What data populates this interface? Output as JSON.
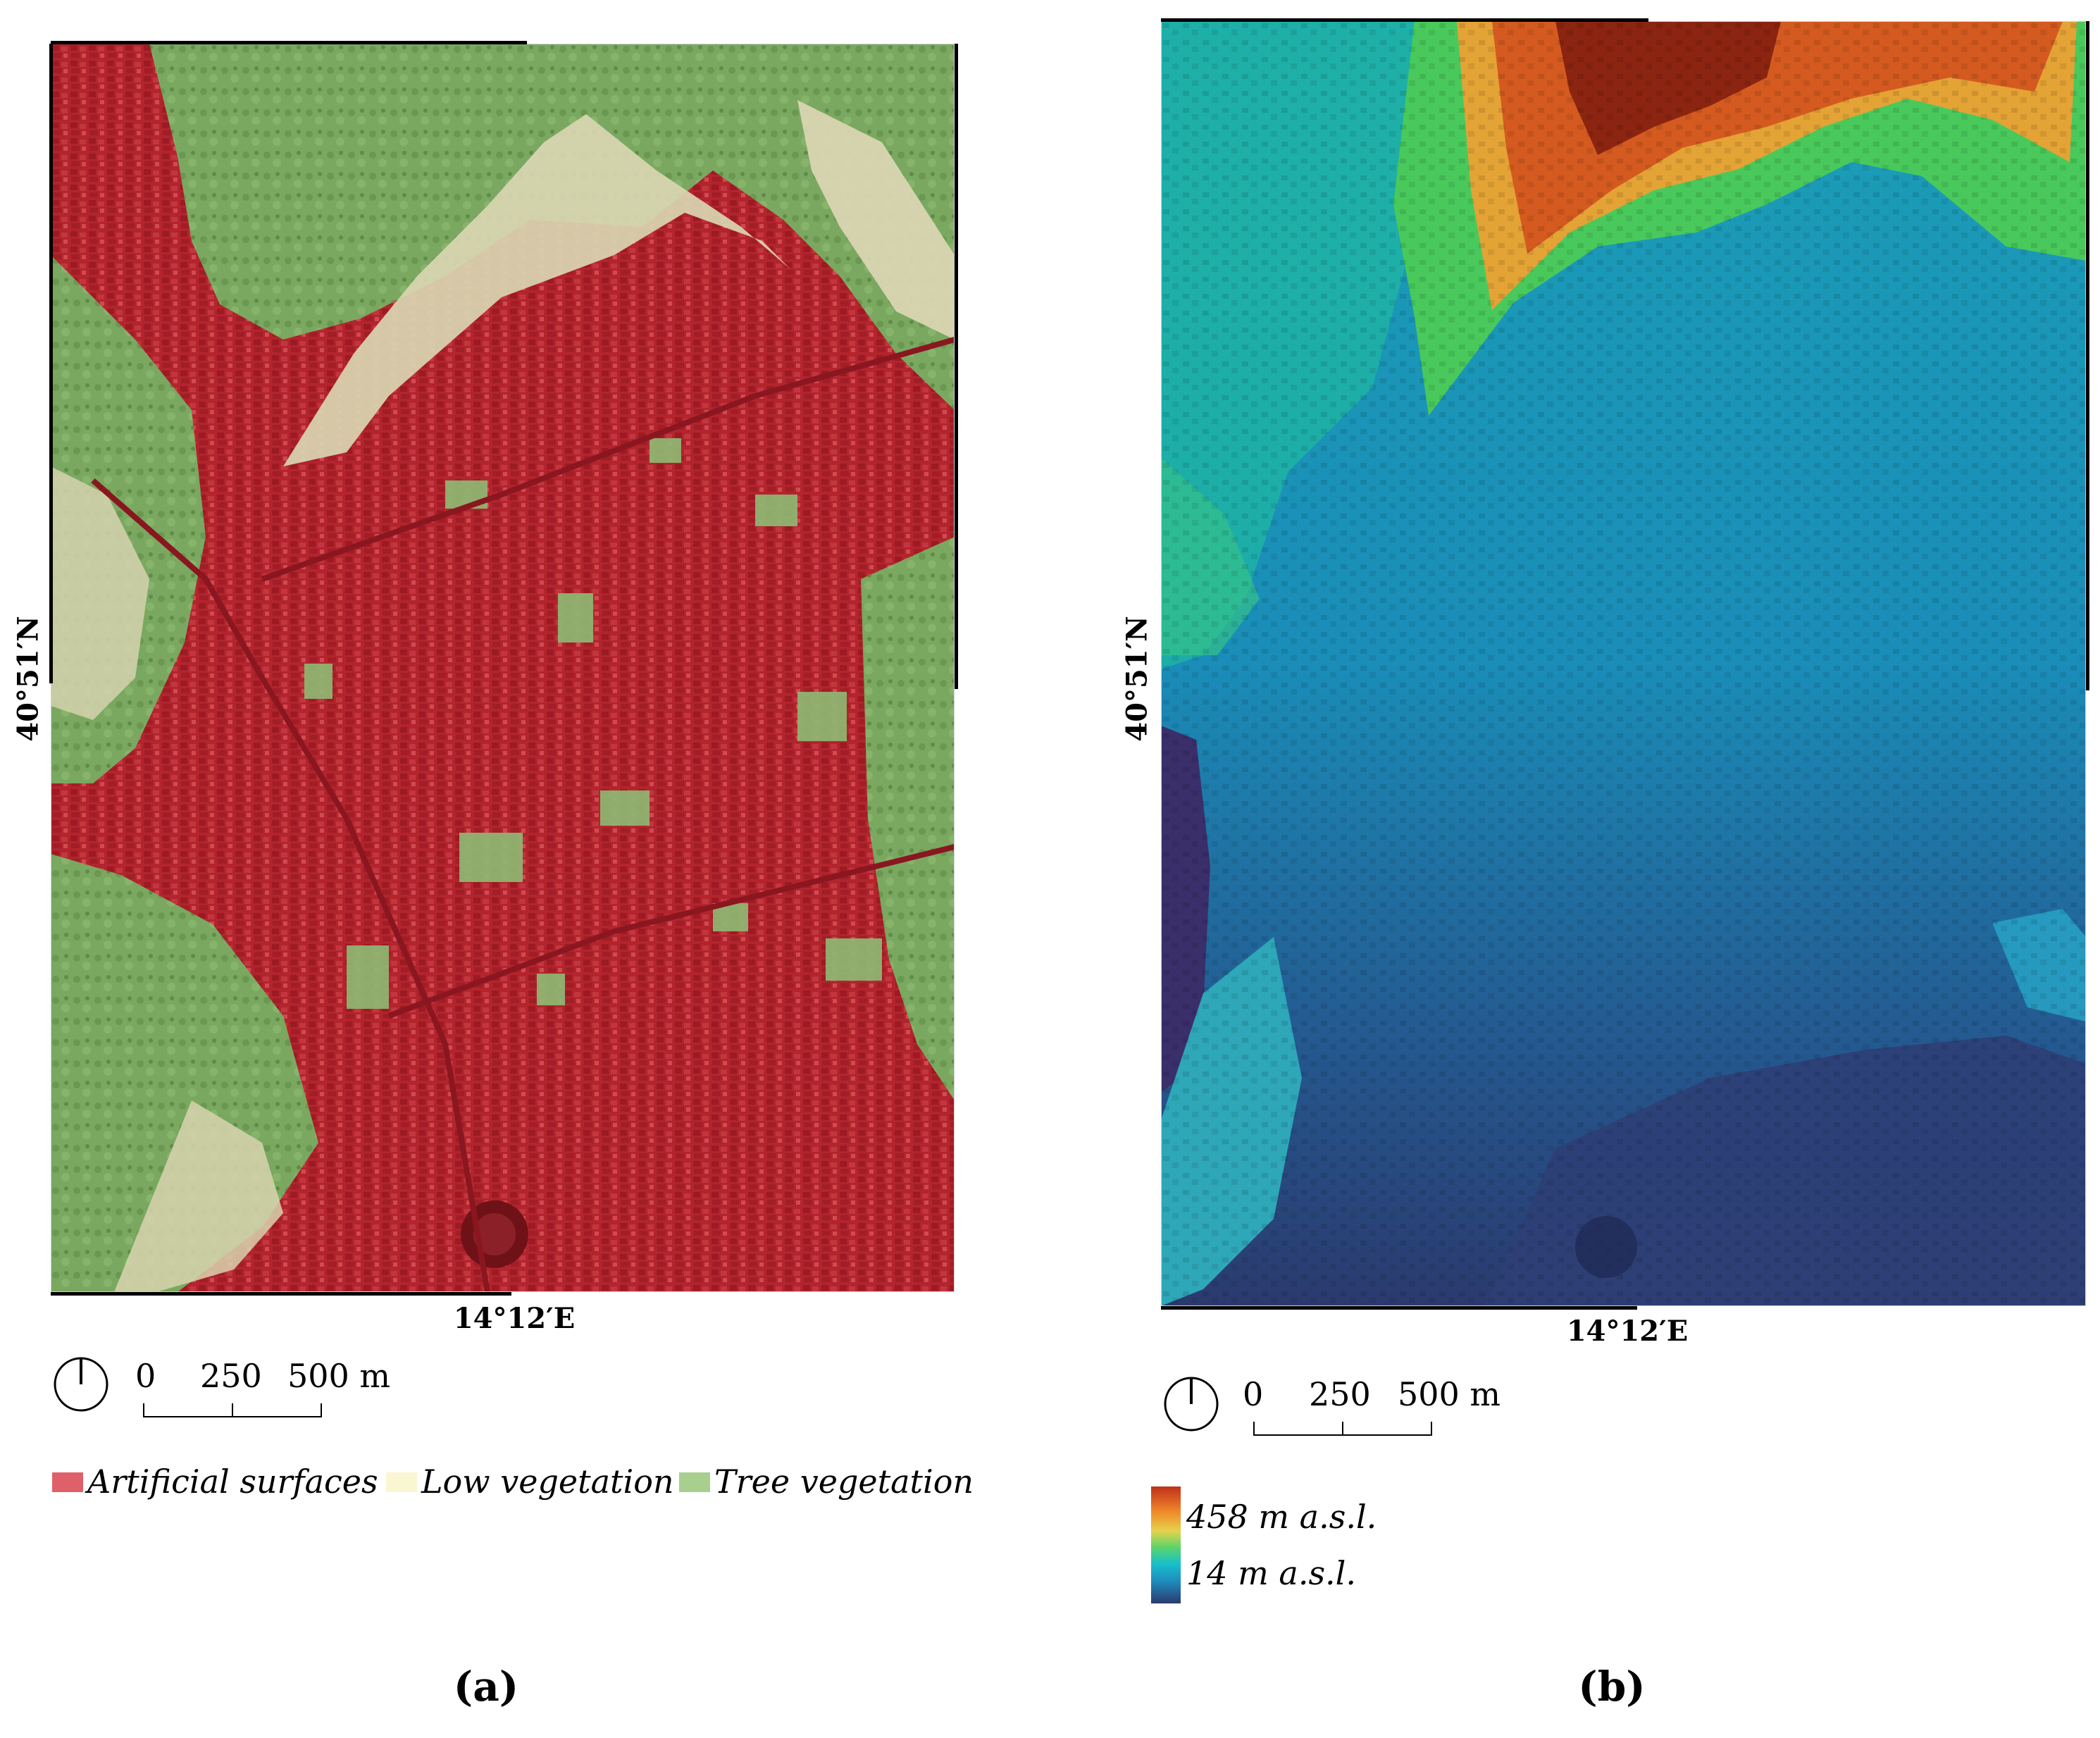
{
  "panel_a": {
    "lat_label": "40°51′N",
    "lon_label": "14°12′E",
    "scale": {
      "v0": "0",
      "v1": "250",
      "v2": "500 m"
    },
    "legend": [
      {
        "label": "Artificial surfaces",
        "color": "#e0606a"
      },
      {
        "label": "Low vegetation",
        "color": "#fbf6d2"
      },
      {
        "label": "Tree vegetation",
        "color": "#a9cf8f"
      }
    ],
    "caption": "(a)"
  },
  "panel_b": {
    "lat_label": "40°51′N",
    "lon_label": "14°12′E",
    "scale": {
      "v0": "0",
      "v1": "250",
      "v2": "500 m"
    },
    "legend_high": "458 m a.s.l.",
    "legend_low": "14 m a.s.l.",
    "caption": "(b)"
  }
}
